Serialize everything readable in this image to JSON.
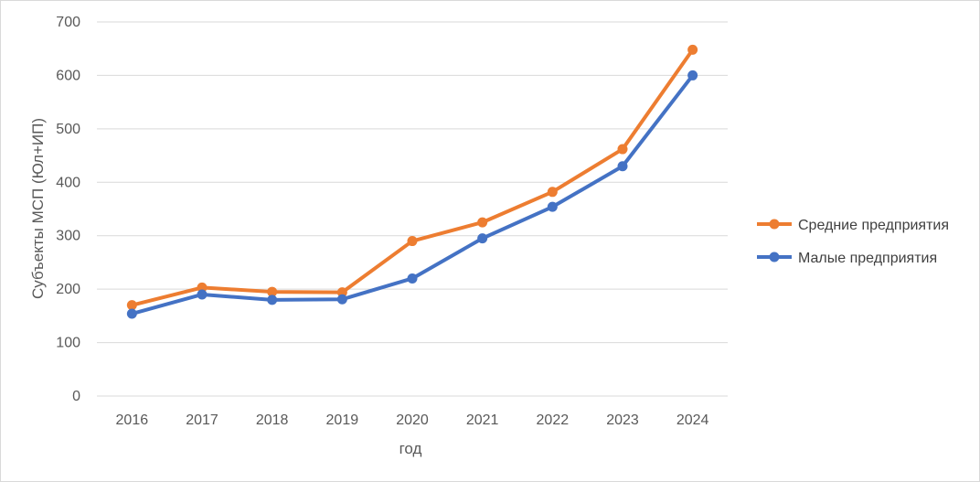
{
  "chart_data": {
    "type": "line",
    "title": "",
    "xlabel": "год",
    "ylabel": "Субъекты МСП (Юл+ИП)",
    "categories": [
      "2016",
      "2017",
      "2018",
      "2019",
      "2020",
      "2021",
      "2022",
      "2023",
      "2024"
    ],
    "ylim": [
      0,
      700
    ],
    "yticks": [
      0,
      100,
      200,
      300,
      400,
      500,
      600,
      700
    ],
    "grid": true,
    "legend_position": "right",
    "series": [
      {
        "name": "Средние предприятия",
        "color": "#ED7D31",
        "values": [
          170,
          203,
          195,
          194,
          290,
          325,
          382,
          462,
          648
        ]
      },
      {
        "name": "Малые предприятия",
        "color": "#4472C4",
        "values": [
          154,
          190,
          180,
          181,
          220,
          295,
          354,
          430,
          600
        ]
      }
    ]
  }
}
